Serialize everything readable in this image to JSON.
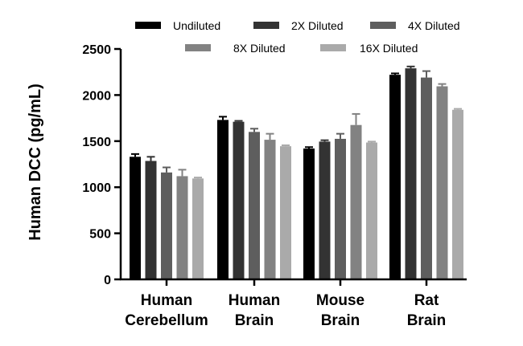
{
  "chart_data": {
    "type": "bar",
    "ylabel": "Human DCC (pg/mL)",
    "ylim": [
      0,
      2500
    ],
    "yticks": [
      0,
      500,
      1000,
      1500,
      2000,
      2500
    ],
    "categories": [
      [
        "Human",
        "Cerebellum"
      ],
      [
        "Human",
        "Brain"
      ],
      [
        "Mouse",
        "Brain"
      ],
      [
        "Rat",
        "Brain"
      ]
    ],
    "legend_position": "top",
    "series": [
      {
        "name": "Undiluted",
        "color": "#000000",
        "values": [
          1330,
          1730,
          1420,
          2220
        ],
        "errors": [
          30,
          35,
          15,
          15
        ]
      },
      {
        "name": "2X Diluted",
        "color": "#333333",
        "values": [
          1285,
          1710,
          1495,
          2290
        ],
        "errors": [
          45,
          10,
          15,
          20
        ]
      },
      {
        "name": "4X Diluted",
        "color": "#5e5e5e",
        "values": [
          1160,
          1600,
          1525,
          2190
        ],
        "errors": [
          55,
          35,
          55,
          70
        ]
      },
      {
        "name": "8X Diluted",
        "color": "#828282",
        "values": [
          1120,
          1515,
          1675,
          2095
        ],
        "errors": [
          70,
          65,
          120,
          25
        ]
      },
      {
        "name": "16X Diluted",
        "color": "#aaaaaa",
        "values": [
          1095,
          1445,
          1485,
          1840
        ],
        "errors": [
          10,
          10,
          10,
          10
        ]
      }
    ]
  }
}
